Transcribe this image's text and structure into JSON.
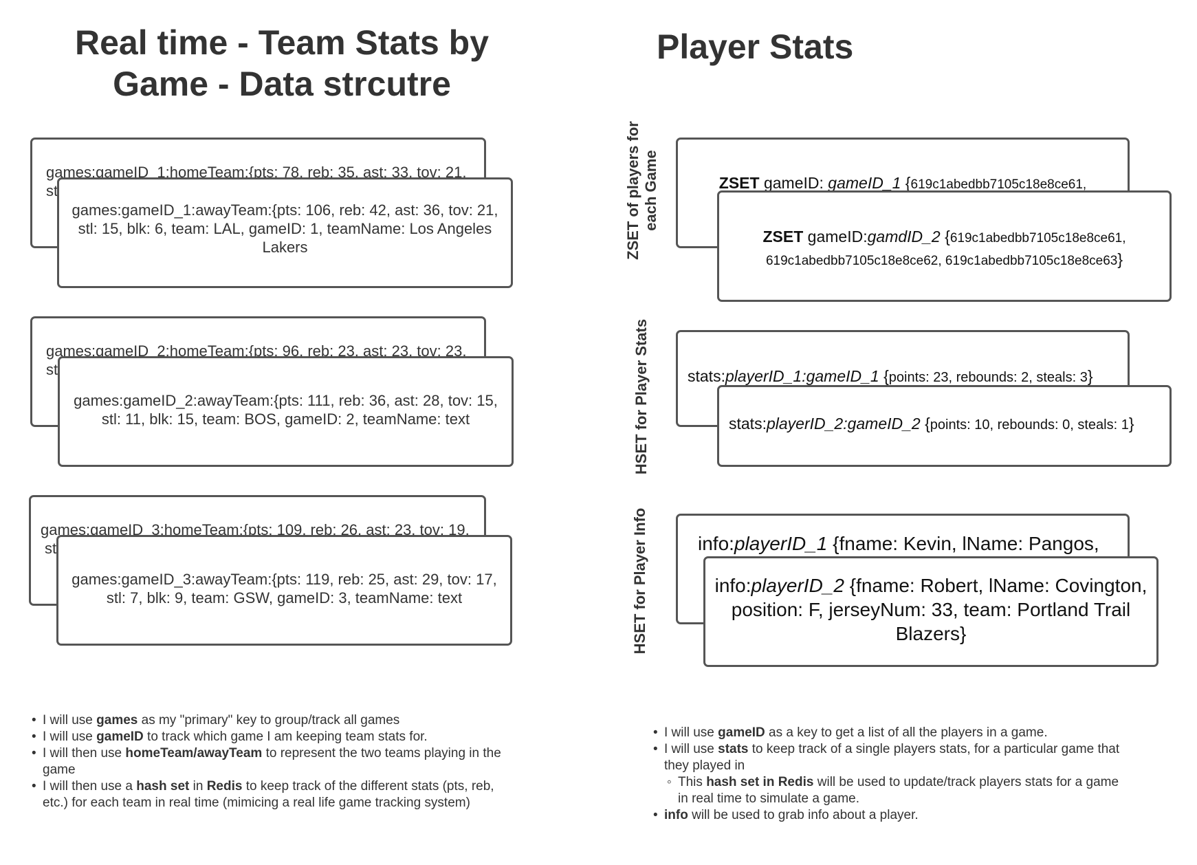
{
  "left": {
    "title_line1": "Real time - Team Stats by",
    "title_line2": "Game - Data strcutre",
    "games": [
      {
        "home_text": "games:gameID_1:homeTeam:{pts: 78, reb: 35, ast: 33, tov: 21,",
        "home_text2": "st",
        "away_text": "games:gameID_1:awayTeam:{pts: 106, reb: 42, ast: 36, tov: 21, stl: 15, blk: 6, team: LAL, gameID: 1, teamName: Los Angeles Lakers"
      },
      {
        "home_text": "games:gameID_2:homeTeam:{pts: 96, reb: 23, ast: 23, tov: 23,",
        "home_text2": "st",
        "away_text": "games:gameID_2:awayTeam:{pts: 111, reb: 36, ast: 28, tov: 15, stl: 11, blk: 15, team: BOS, gameID: 2, teamName: text"
      },
      {
        "home_text": "games:gameID_3:homeTeam:{pts: 109, reb: 26, ast: 23, tov: 19,",
        "home_text2": "st",
        "away_text": "games:gameID_3:awayTeam:{pts: 119, reb: 25, ast: 29, tov: 17, stl: 7, blk: 9, team: GSW, gameID: 3, teamName: text"
      }
    ],
    "notes": [
      {
        "pre": "I will use ",
        "bold": "games",
        "post": " as my \"primary\" key to group/track all games"
      },
      {
        "pre": "I will use ",
        "bold": "gameID",
        "post": " to track which game I am keeping team stats for."
      },
      {
        "pre": "I will then use ",
        "bold": "homeTeam/awayTeam",
        "post": " to represent the two teams playing in the game"
      },
      {
        "pre": "I will then use a ",
        "bold": "hash set",
        "mid": " in ",
        "bold2": "Redis",
        "post": " to keep track of the different stats (pts, reb, etc.) for each team in real time (mimicing a real life game tracking system)"
      }
    ]
  },
  "right": {
    "title": "Player Stats",
    "zset_label_line1": "ZSET of players for",
    "zset_label_line2": "each Game",
    "zset_back": {
      "kw": "ZSET",
      "key": " gameID: ",
      "id": "gameID_1",
      "brace": " {",
      "vals": "619c1abedbb7105c18e8ce61,"
    },
    "zset_front": {
      "kw": "ZSET",
      "key": " gameID:",
      "id": "gamdID_2",
      "brace": " {",
      "vals": "619c1abedbb7105c18e8ce61,",
      "vals2": "619c1abedbb7105c18e8ce62, 619c1abedbb7105c18e8ce63",
      "close": "}"
    },
    "hset_stats_label": "HSET for Player Stats",
    "stats_back": {
      "key": "stats:",
      "id": "playerID_1:gameID_1",
      "brace": " {",
      "vals": "points: 23, rebounds: 2, steals: 3",
      "close": "}"
    },
    "stats_front": {
      "key": "stats:",
      "id": "playerID_2:gameID_2",
      "brace": " {",
      "vals": "points: 10, rebounds: 0, steals: 1",
      "close": "}"
    },
    "hset_info_label": "HSET for Player Info",
    "info_back": {
      "key": "info:",
      "id": "playerID_1",
      "vals": " {fname: Kevin, lName: Pangos,"
    },
    "info_front": {
      "key": "info:",
      "id": "playerID_2",
      "vals": " {fname: Robert, lName: Covington, position: F, jerseyNum: 33, team:  Portland Trail Blazers",
      "close": "}"
    },
    "notes": [
      {
        "pre": "I will use ",
        "bold": "gameID",
        "post": " as a key to get a list of all the players in a game."
      },
      {
        "pre": "I will use ",
        "bold": "stats",
        "post": "  to keep track of a single players stats, for a particular game that they played in"
      },
      {
        "pre": "This ",
        "bold": "hash set in Redis",
        "post": " will be used to update/track players stats for a game in real time to simulate a game."
      },
      {
        "pre": "",
        "bold": "info",
        "post": " will be used to grab info about a player."
      }
    ]
  }
}
